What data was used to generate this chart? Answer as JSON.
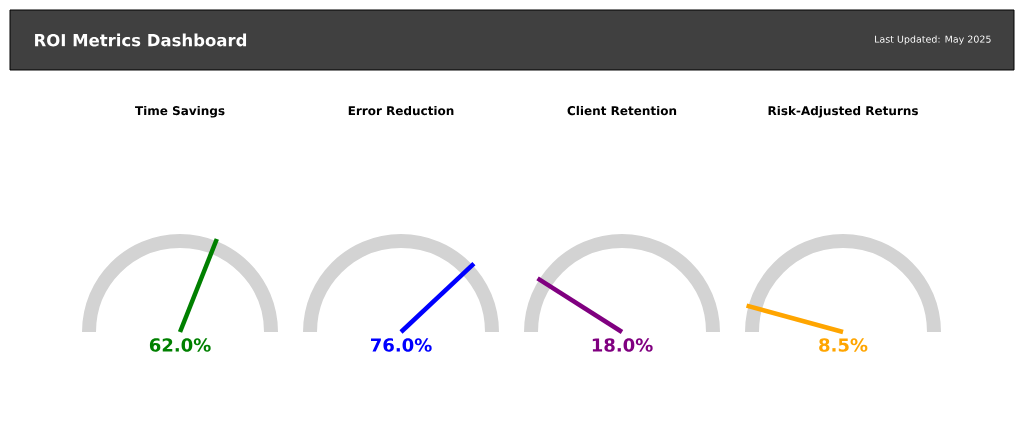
{
  "chart_data": [
    {
      "type": "other",
      "title": "ROI Metrics Dashboard",
      "annotations": [
        "Last Updated: May 2025"
      ]
    },
    {
      "type": "other",
      "title": "Time Savings",
      "values": [
        62.0
      ],
      "value_labels": [
        "62.0%"
      ],
      "color": "#008000"
    },
    {
      "type": "other",
      "title": "Error Reduction",
      "values": [
        76.0
      ],
      "value_labels": [
        "76.0%"
      ],
      "color": "#0000ff"
    },
    {
      "type": "other",
      "title": "Client Retention",
      "values": [
        18.0
      ],
      "value_labels": [
        "18.0%"
      ],
      "color": "#800080"
    },
    {
      "type": "other",
      "title": "Risk-Adjusted Returns",
      "values": [
        8.5
      ],
      "value_labels": [
        "8.5%"
      ],
      "color": "#ffa500"
    }
  ]
}
